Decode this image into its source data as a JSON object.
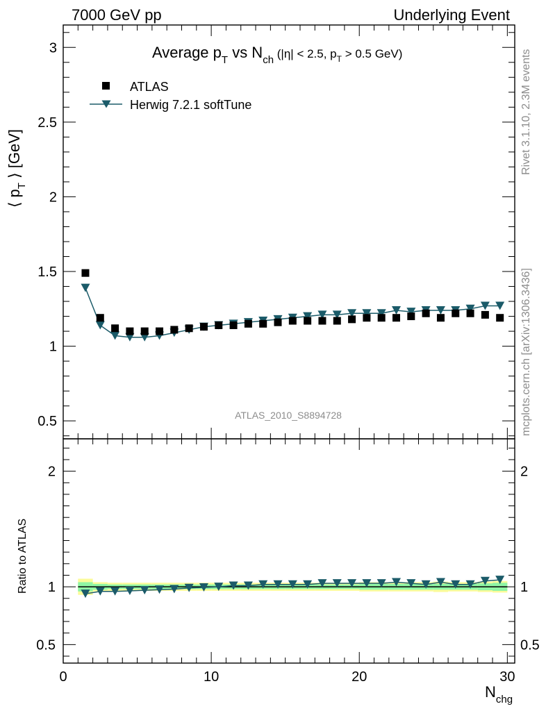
{
  "header": {
    "left": "7000 GeV pp",
    "right": "Underlying Event"
  },
  "side_labels": {
    "rivet": "Rivet 3.1.10,  2.3M events",
    "mcplots": "mcplots.cern.ch [arXiv:1306.3436]"
  },
  "watermark": "ATLAS_2010_S8894728",
  "chart_data": [
    {
      "type": "scatter",
      "panel": "main",
      "title": "Average p_T vs N_ch (|η| < 2.5, p_T > 0.5 GeV)",
      "title_parts": {
        "main": "Average p",
        "sub1": "T",
        "mid": " vs N",
        "sub2": "ch",
        "cond_a": " (|η| < 2.5, p",
        "sub3": "T",
        "cond_b": " > 0.5 GeV)"
      },
      "ylabel": "⟨ p_T ⟩ [GeV]",
      "ylabel_parts": {
        "open": "⟨ p",
        "sub": "T",
        "close": " ⟩ [GeV]"
      },
      "xlim": [
        0,
        30.5
      ],
      "ylim": [
        0.38,
        3.15
      ],
      "yticks": [
        "0.5",
        "1",
        "1.5",
        "2",
        "2.5",
        "3"
      ],
      "legend": {
        "position": "top-left",
        "entries": [
          "ATLAS",
          "Herwig 7.2.1 softTune"
        ]
      },
      "series": [
        {
          "name": "ATLAS",
          "marker": "square",
          "color": "#000000",
          "x": [
            1.5,
            2.5,
            3.5,
            4.5,
            5.5,
            6.5,
            7.5,
            8.5,
            9.5,
            10.5,
            11.5,
            12.5,
            13.5,
            14.5,
            15.5,
            16.5,
            17.5,
            18.5,
            19.5,
            20.5,
            21.5,
            22.5,
            23.5,
            24.5,
            25.5,
            26.5,
            27.5,
            28.5,
            29.5
          ],
          "y": [
            1.49,
            1.19,
            1.12,
            1.1,
            1.1,
            1.1,
            1.11,
            1.12,
            1.13,
            1.14,
            1.14,
            1.15,
            1.15,
            1.16,
            1.17,
            1.17,
            1.17,
            1.17,
            1.18,
            1.19,
            1.19,
            1.19,
            1.2,
            1.22,
            1.19,
            1.22,
            1.22,
            1.21,
            1.19
          ]
        },
        {
          "name": "Herwig 7.2.1 softTune",
          "marker": "triangle-down",
          "color": "#1b5b69",
          "x": [
            1.5,
            2.5,
            3.5,
            4.5,
            5.5,
            6.5,
            7.5,
            8.5,
            9.5,
            10.5,
            11.5,
            12.5,
            13.5,
            14.5,
            15.5,
            16.5,
            17.5,
            18.5,
            19.5,
            20.5,
            21.5,
            22.5,
            23.5,
            24.5,
            25.5,
            26.5,
            27.5,
            28.5,
            29.5
          ],
          "y": [
            1.39,
            1.14,
            1.07,
            1.06,
            1.06,
            1.07,
            1.09,
            1.11,
            1.13,
            1.14,
            1.15,
            1.16,
            1.17,
            1.18,
            1.19,
            1.2,
            1.21,
            1.21,
            1.22,
            1.22,
            1.22,
            1.24,
            1.23,
            1.24,
            1.24,
            1.24,
            1.25,
            1.27,
            1.27
          ]
        }
      ]
    },
    {
      "type": "scatter",
      "panel": "ratio",
      "xlabel": "N_chg",
      "xlabel_parts": {
        "main": "N",
        "sub": "chg"
      },
      "ylabel": "Ratio to ATLAS",
      "xlim": [
        0,
        30.5
      ],
      "ylim": [
        0.34,
        2.28
      ],
      "xticks": [
        "0",
        "10",
        "20",
        "30"
      ],
      "yticks": [
        "0.5",
        "1",
        "2"
      ],
      "band_colors": {
        "inner": "#8ff5a4",
        "outer": "#fbfb9a"
      },
      "bands": {
        "x": [
          1.5,
          2.5,
          3.5,
          4.5,
          5.5,
          6.5,
          7.5,
          8.5,
          9.5,
          10.5,
          11.5,
          12.5,
          13.5,
          14.5,
          15.5,
          16.5,
          17.5,
          18.5,
          19.5,
          20.5,
          21.5,
          22.5,
          23.5,
          24.5,
          25.5,
          26.5,
          27.5,
          28.5,
          29.5
        ],
        "inner": [
          0.04,
          0.025,
          0.02,
          0.02,
          0.02,
          0.02,
          0.02,
          0.02,
          0.02,
          0.02,
          0.02,
          0.02,
          0.02,
          0.02,
          0.02,
          0.02,
          0.02,
          0.02,
          0.02,
          0.025,
          0.025,
          0.025,
          0.025,
          0.025,
          0.025,
          0.025,
          0.025,
          0.03,
          0.035
        ],
        "outer": [
          0.07,
          0.04,
          0.035,
          0.035,
          0.035,
          0.035,
          0.035,
          0.035,
          0.035,
          0.035,
          0.035,
          0.035,
          0.035,
          0.035,
          0.035,
          0.035,
          0.035,
          0.035,
          0.035,
          0.04,
          0.04,
          0.04,
          0.04,
          0.04,
          0.045,
          0.04,
          0.04,
          0.045,
          0.05
        ]
      },
      "series": [
        {
          "name": "Herwig 7.2.1 softTune",
          "marker": "triangle-down",
          "color": "#1b5b69",
          "x": [
            1.5,
            2.5,
            3.5,
            4.5,
            5.5,
            6.5,
            7.5,
            8.5,
            9.5,
            10.5,
            11.5,
            12.5,
            13.5,
            14.5,
            15.5,
            16.5,
            17.5,
            18.5,
            19.5,
            20.5,
            21.5,
            22.5,
            23.5,
            24.5,
            25.5,
            26.5,
            27.5,
            28.5,
            29.5
          ],
          "y": [
            0.94,
            0.96,
            0.96,
            0.965,
            0.97,
            0.975,
            0.98,
            0.99,
            0.995,
            1.0,
            1.01,
            1.01,
            1.02,
            1.02,
            1.02,
            1.02,
            1.03,
            1.03,
            1.03,
            1.03,
            1.03,
            1.04,
            1.03,
            1.02,
            1.04,
            1.02,
            1.02,
            1.05,
            1.06
          ]
        }
      ]
    }
  ]
}
